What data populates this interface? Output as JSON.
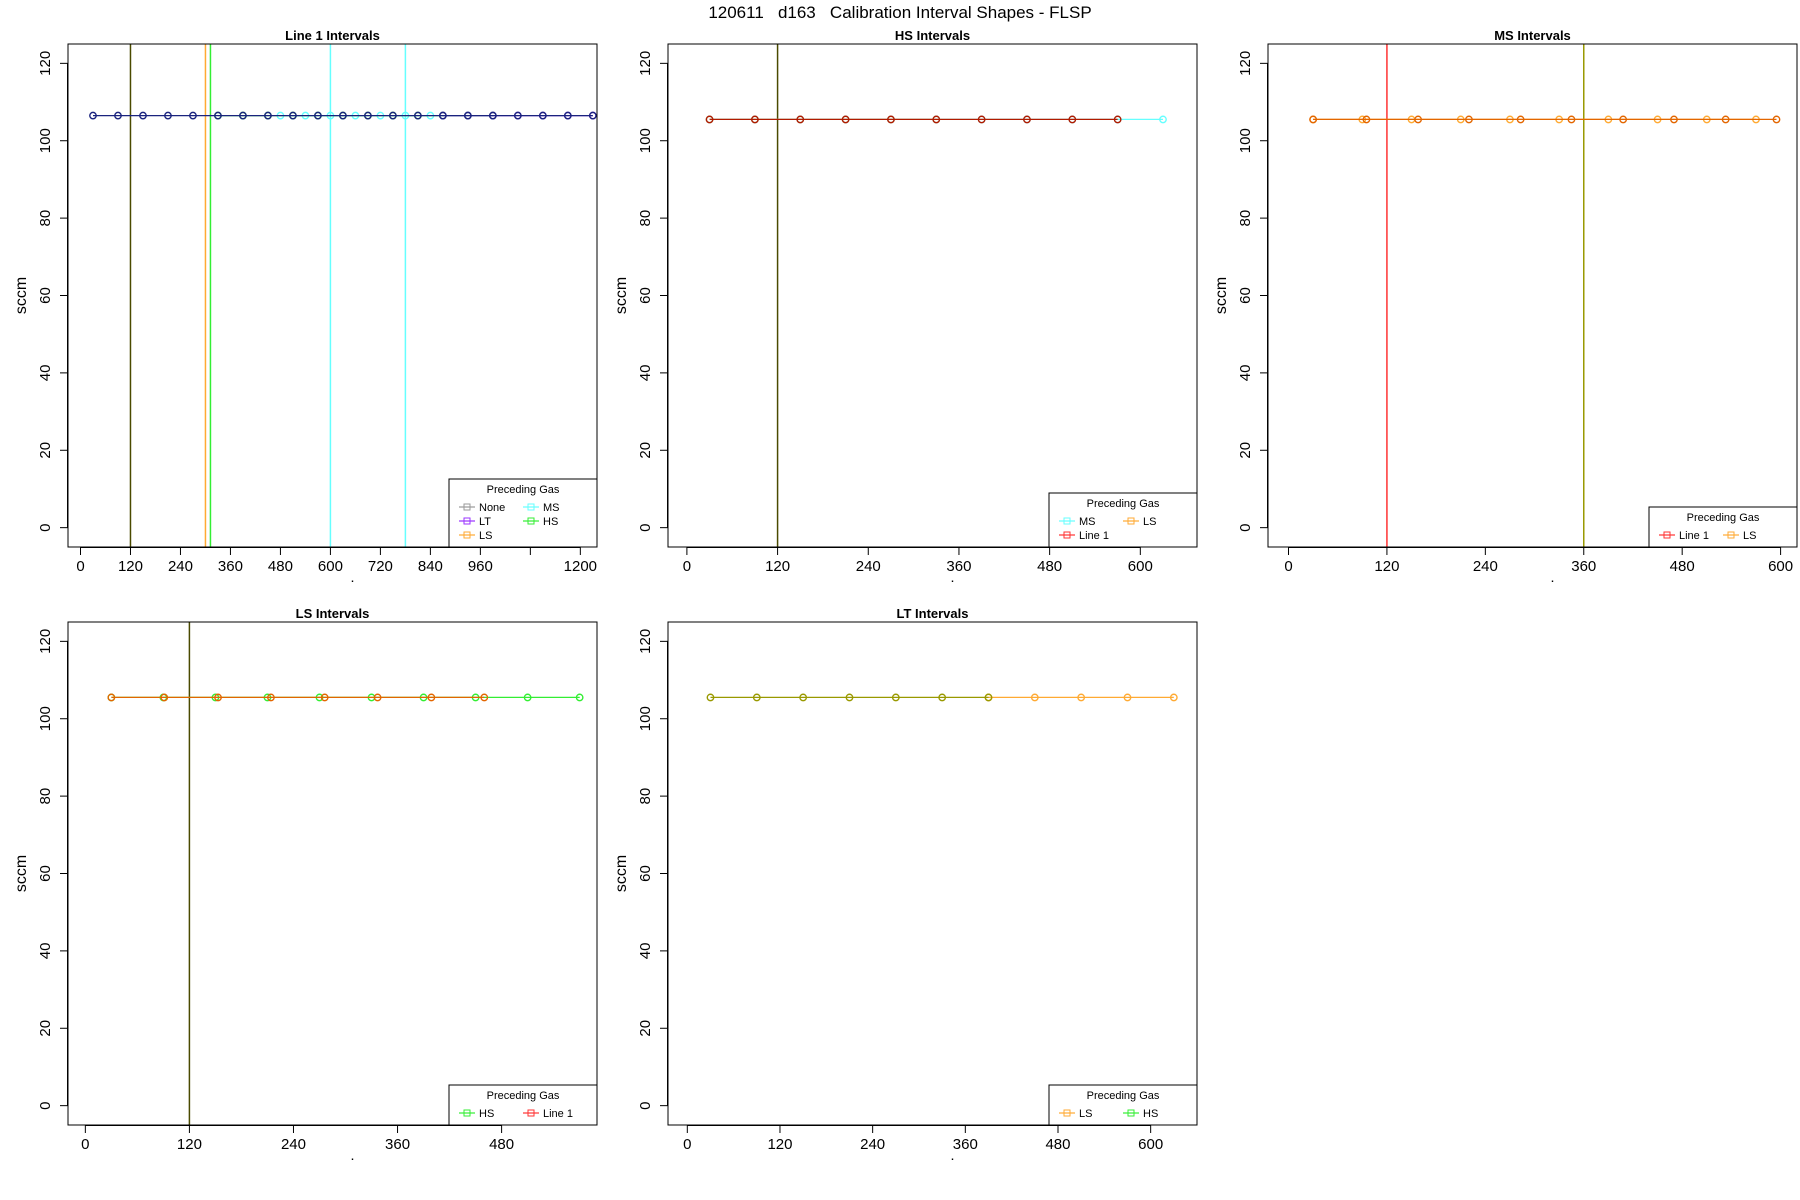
{
  "main_title": "120611   d163   Calibration Interval Shapes - FLSP",
  "colors": {
    "None": "#999999",
    "LT": "#9933ff",
    "LS": "#ffaa33",
    "MS": "#66ffff",
    "HS": "#33ee33",
    "Line 1": "#ff3333",
    "navy": "#1a237e",
    "dark_olive": "#4a4a00",
    "olive": "#999900",
    "dark_red": "#b21a00",
    "dark_orange": "#e36600"
  },
  "chart_data": [
    {
      "type": "line",
      "title": "Line 1 Intervals",
      "xlabel": "seconds",
      "ylabel": "sccm",
      "xlim": [
        -30,
        1240
      ],
      "ylim": [
        -5,
        125
      ],
      "xticks": [
        0,
        120,
        240,
        360,
        480,
        600,
        720,
        840,
        960,
        1080,
        1200
      ],
      "xtick_labels": [
        "0",
        "120",
        "240",
        "360",
        "480",
        "600",
        "720",
        "840",
        "960",
        "",
        "1200"
      ],
      "yticks": [
        0,
        20,
        40,
        60,
        80,
        100,
        120
      ],
      "vlines": [
        {
          "x": 120,
          "color": "dark_olive"
        },
        {
          "x": 300,
          "color": "LS"
        },
        {
          "x": 312,
          "color": "HS"
        },
        {
          "x": 600,
          "color": "MS"
        },
        {
          "x": 780,
          "color": "MS"
        }
      ],
      "series": [
        {
          "name": "MS",
          "color": "MS",
          "x": [
            480,
            540,
            600,
            660,
            720,
            780,
            840
          ],
          "y": [
            106.5,
            106.5,
            106.5,
            106.5,
            106.5,
            106.5,
            106.5
          ]
        },
        {
          "name": "HS",
          "color": "HS",
          "x": [
            330,
            390,
            450,
            510,
            570,
            630,
            690,
            750,
            810,
            870,
            930,
            990
          ],
          "y": [
            106.5,
            106.5,
            106.5,
            106.5,
            106.5,
            106.5,
            106.5,
            106.5,
            106.5,
            106.5,
            106.5,
            106.5
          ]
        },
        {
          "name": "LT",
          "color": "LT",
          "x": [
            870,
            930,
            990,
            1050,
            1110,
            1170,
            1230
          ],
          "y": [
            106.5,
            106.5,
            106.5,
            106.5,
            106.5,
            106.5,
            106.5
          ]
        },
        {
          "name": "None",
          "color": "navy",
          "x": [
            30,
            90,
            150,
            210,
            270,
            330,
            390,
            450,
            510,
            570,
            630,
            690,
            750,
            810,
            870,
            930,
            990,
            1050,
            1110,
            1170,
            1230
          ],
          "y": [
            106.5,
            106.5,
            106.5,
            106.5,
            106.5,
            106.5,
            106.5,
            106.5,
            106.5,
            106.5,
            106.5,
            106.5,
            106.5,
            106.5,
            106.5,
            106.5,
            106.5,
            106.5,
            106.5,
            106.5,
            106.5
          ]
        }
      ],
      "legend": {
        "title": "Preceding Gas",
        "position": "bottom-right",
        "columns": 2,
        "entries": [
          {
            "label": "None",
            "color": "None"
          },
          {
            "label": "MS",
            "color": "MS"
          },
          {
            "label": "LT",
            "color": "LT"
          },
          {
            "label": "HS",
            "color": "HS"
          },
          {
            "label": "LS",
            "color": "LS"
          }
        ]
      }
    },
    {
      "type": "line",
      "title": "HS Intervals",
      "xlabel": "seconds",
      "ylabel": "sccm",
      "xlim": [
        -25,
        675
      ],
      "ylim": [
        -5,
        125
      ],
      "xticks": [
        0,
        120,
        240,
        360,
        480,
        600
      ],
      "xtick_labels": [
        "0",
        "120",
        "240",
        "360",
        "480",
        "600"
      ],
      "yticks": [
        0,
        20,
        40,
        60,
        80,
        100,
        120
      ],
      "vlines": [
        {
          "x": 120,
          "color": "dark_olive"
        }
      ],
      "series": [
        {
          "name": "LS",
          "color": "LS",
          "x": [
            30,
            90,
            150,
            210,
            270,
            330
          ],
          "y": [
            105.5,
            105.5,
            105.5,
            105.5,
            105.5,
            105.5
          ]
        },
        {
          "name": "MS",
          "color": "MS",
          "x": [
            30,
            90,
            150,
            210,
            270,
            330,
            390,
            450,
            510,
            570,
            630
          ],
          "y": [
            105.5,
            105.5,
            105.5,
            105.5,
            105.5,
            105.5,
            105.5,
            105.5,
            105.5,
            105.5,
            105.5
          ]
        },
        {
          "name": "Line 1",
          "color": "dark_red",
          "x": [
            30,
            90,
            150,
            210,
            270,
            330,
            390,
            450,
            510,
            570
          ],
          "y": [
            105.5,
            105.5,
            105.5,
            105.5,
            105.5,
            105.5,
            105.5,
            105.5,
            105.5,
            105.5
          ]
        }
      ],
      "legend": {
        "title": "Preceding Gas",
        "position": "bottom-right",
        "columns": 2,
        "entries": [
          {
            "label": "MS",
            "color": "MS"
          },
          {
            "label": "LS",
            "color": "LS"
          },
          {
            "label": "Line 1",
            "color": "Line 1"
          }
        ]
      }
    },
    {
      "type": "line",
      "title": "MS Intervals",
      "xlabel": "seconds",
      "ylabel": "sccm",
      "xlim": [
        -25,
        620
      ],
      "ylim": [
        -5,
        125
      ],
      "xticks": [
        0,
        120,
        240,
        360,
        480,
        600
      ],
      "xtick_labels": [
        "0",
        "120",
        "240",
        "360",
        "480",
        "600"
      ],
      "yticks": [
        0,
        20,
        40,
        60,
        80,
        100,
        120
      ],
      "vlines": [
        {
          "x": 120,
          "color": "Line 1"
        },
        {
          "x": 360,
          "color": "olive"
        }
      ],
      "series": [
        {
          "name": "LS",
          "color": "LS",
          "x": [
            30,
            90,
            150,
            210,
            270,
            330,
            390,
            450,
            510,
            570
          ],
          "y": [
            105.5,
            105.5,
            105.5,
            105.5,
            105.5,
            105.5,
            105.5,
            105.5,
            105.5,
            105.5
          ]
        },
        {
          "name": "Line 1",
          "color": "dark_orange",
          "x": [
            30,
            95,
            158,
            220,
            283,
            345,
            408,
            470,
            533,
            595
          ],
          "y": [
            105.5,
            105.5,
            105.5,
            105.5,
            105.5,
            105.5,
            105.5,
            105.5,
            105.5,
            105.5
          ]
        }
      ],
      "legend": {
        "title": "Preceding Gas",
        "position": "bottom-right",
        "columns": 2,
        "entries": [
          {
            "label": "Line 1",
            "color": "Line 1"
          },
          {
            "label": "LS",
            "color": "LS"
          }
        ]
      }
    },
    {
      "type": "line",
      "title": "LS Intervals",
      "xlabel": "seconds",
      "ylabel": "sccm",
      "xlim": [
        -20,
        590
      ],
      "ylim": [
        -5,
        125
      ],
      "xticks": [
        0,
        120,
        240,
        360,
        480
      ],
      "xtick_labels": [
        "0",
        "120",
        "240",
        "360",
        "480"
      ],
      "yticks": [
        0,
        20,
        40,
        60,
        80,
        100,
        120
      ],
      "vlines": [
        {
          "x": 120,
          "color": "dark_olive"
        }
      ],
      "series": [
        {
          "name": "HS",
          "color": "HS",
          "x": [
            30,
            90,
            150,
            210,
            270,
            330,
            390,
            450,
            510,
            570
          ],
          "y": [
            105.5,
            105.5,
            105.5,
            105.5,
            105.5,
            105.5,
            105.5,
            105.5,
            105.5,
            105.5
          ]
        },
        {
          "name": "Line 1",
          "color": "dark_orange",
          "x": [
            30,
            91,
            153,
            214,
            276,
            337,
            399,
            460
          ],
          "y": [
            105.5,
            105.5,
            105.5,
            105.5,
            105.5,
            105.5,
            105.5,
            105.5
          ]
        }
      ],
      "legend": {
        "title": "Preceding Gas",
        "position": "bottom-right",
        "columns": 2,
        "entries": [
          {
            "label": "HS",
            "color": "HS"
          },
          {
            "label": "Line 1",
            "color": "Line 1"
          }
        ]
      }
    },
    {
      "type": "line",
      "title": "LT Intervals",
      "xlabel": "seconds",
      "ylabel": "sccm",
      "xlim": [
        -25,
        660
      ],
      "ylim": [
        -5,
        125
      ],
      "xticks": [
        0,
        120,
        240,
        360,
        480,
        600
      ],
      "xtick_labels": [
        "0",
        "120",
        "240",
        "360",
        "480",
        "600"
      ],
      "yticks": [
        0,
        20,
        40,
        60,
        80,
        100,
        120
      ],
      "vlines": [],
      "series": [
        {
          "name": "LS",
          "color": "LS",
          "x": [
            390,
            450,
            510,
            570,
            630
          ],
          "y": [
            105.5,
            105.5,
            105.5,
            105.5,
            105.5
          ]
        },
        {
          "name": "HS",
          "color": "olive",
          "x": [
            30,
            90,
            150,
            210,
            270,
            330,
            390
          ],
          "y": [
            105.5,
            105.5,
            105.5,
            105.5,
            105.5,
            105.5,
            105.5
          ]
        }
      ],
      "legend": {
        "title": "Preceding Gas",
        "position": "bottom-right",
        "columns": 2,
        "entries": [
          {
            "label": "LS",
            "color": "LS"
          },
          {
            "label": "HS",
            "color": "HS"
          }
        ]
      }
    }
  ]
}
